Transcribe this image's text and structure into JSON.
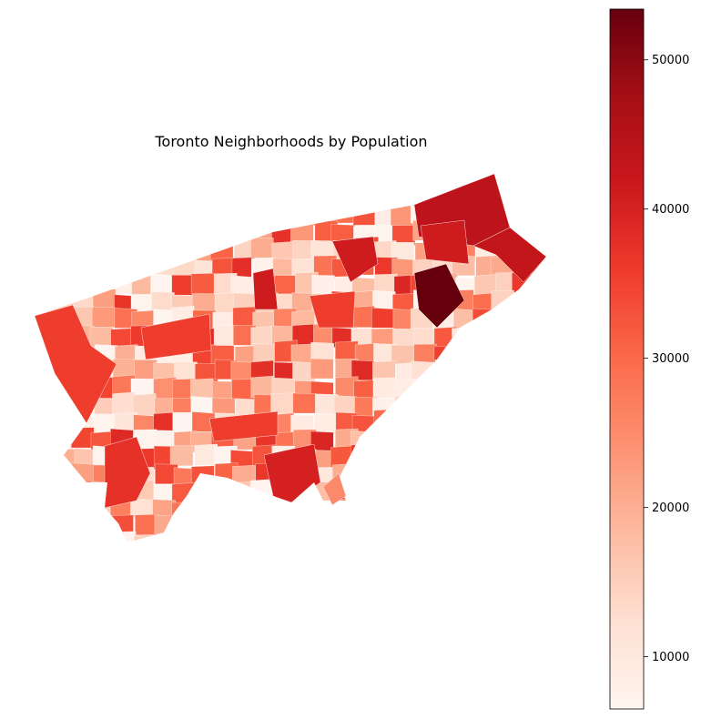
{
  "title": "Toronto Neighborhoods by Population",
  "colormap": {
    "name": "Reds",
    "stops": [
      "#fff5f0",
      "#fee0d2",
      "#fcbba1",
      "#fc9272",
      "#fb6a4a",
      "#ef3b2c",
      "#cb181d",
      "#a50f15",
      "#67000d"
    ],
    "min": 6500,
    "max": 53400
  },
  "colorbar": {
    "ticks": [
      10000,
      20000,
      30000,
      40000,
      50000
    ],
    "tick_labels": [
      "10000",
      "20000",
      "30000",
      "40000",
      "50000"
    ]
  },
  "chart_data": {
    "type": "heatmap",
    "title": "Toronto Neighborhoods by Population",
    "value_range": [
      6500,
      53400
    ],
    "colorbar_ticks": [
      10000,
      20000,
      30000,
      40000,
      50000
    ],
    "regions_note": "choropleth of Toronto neighbourhoods; no region names printed"
  }
}
